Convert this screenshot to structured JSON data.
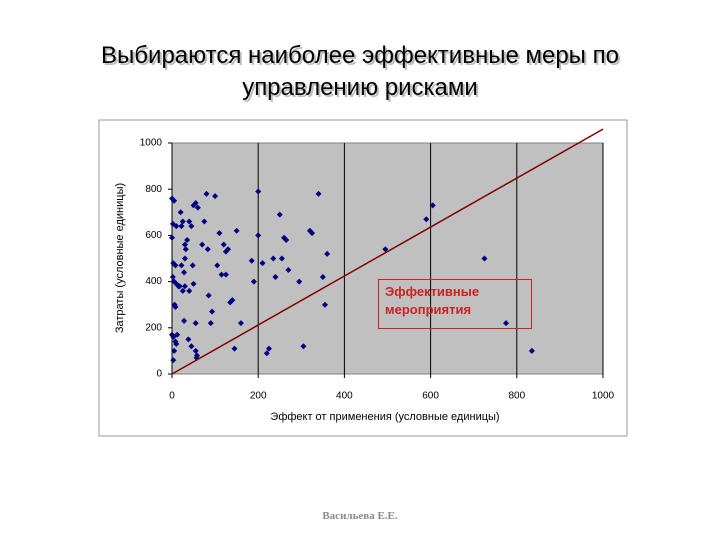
{
  "chart_data": {
    "type": "scatter",
    "title": "Выбираются наиболее эффективные меры по управлению рисками",
    "xlabel": "Эффект от применения (условные единицы)",
    "ylabel": "Затраты (условные единицы)",
    "annotation": "Эффективные мероприятия",
    "color": "#000080",
    "x": [
      0,
      5,
      2,
      0,
      10,
      3,
      8,
      5,
      10,
      15,
      0,
      3,
      8,
      10,
      5,
      12,
      3,
      8,
      6,
      2,
      20,
      22,
      18,
      25,
      30,
      32,
      35,
      30,
      28,
      25,
      30,
      22,
      28,
      40,
      45,
      50,
      55,
      60,
      48,
      50,
      38,
      45,
      55,
      57,
      58,
      55,
      40,
      70,
      75,
      80,
      83,
      85,
      90,
      93,
      100,
      105,
      110,
      115,
      120,
      125,
      125,
      130,
      135,
      140,
      145,
      150,
      160,
      185,
      190,
      200,
      200,
      210,
      220,
      225,
      235,
      240,
      250,
      255,
      260,
      265,
      270,
      295,
      305,
      320,
      325,
      340,
      350,
      355,
      360,
      495,
      590,
      605,
      725,
      775,
      835
    ],
    "values": [
      760,
      750,
      650,
      590,
      640,
      480,
      470,
      400,
      390,
      380,
      170,
      160,
      140,
      130,
      100,
      170,
      60,
      290,
      300,
      420,
      700,
      640,
      380,
      660,
      560,
      540,
      580,
      500,
      440,
      360,
      380,
      470,
      230,
      660,
      640,
      730,
      740,
      720,
      470,
      390,
      150,
      120,
      100,
      70,
      80,
      220,
      360,
      560,
      660,
      780,
      540,
      340,
      220,
      270,
      770,
      470,
      610,
      430,
      560,
      530,
      430,
      540,
      310,
      320,
      110,
      620,
      220,
      490,
      400,
      790,
      600,
      480,
      90,
      110,
      500,
      420,
      690,
      500,
      590,
      580,
      450,
      400,
      120,
      620,
      610,
      780,
      420,
      300,
      520,
      540,
      670,
      730,
      500,
      220,
      100
    ],
    "line": {
      "x": [
        0,
        1000
      ],
      "values": [
        0,
        1060
      ],
      "color": "#800000"
    },
    "annotation_color": "#cc2222",
    "plot_background": "#c0c0c0",
    "xlim": [
      0,
      1000
    ],
    "ylim": [
      0,
      1000
    ],
    "xticks": [
      0,
      200,
      400,
      600,
      800,
      1000
    ],
    "yticks": [
      0,
      200,
      400,
      600,
      800,
      1000
    ],
    "grid": true
  },
  "footer": "Васильева Е.Е."
}
